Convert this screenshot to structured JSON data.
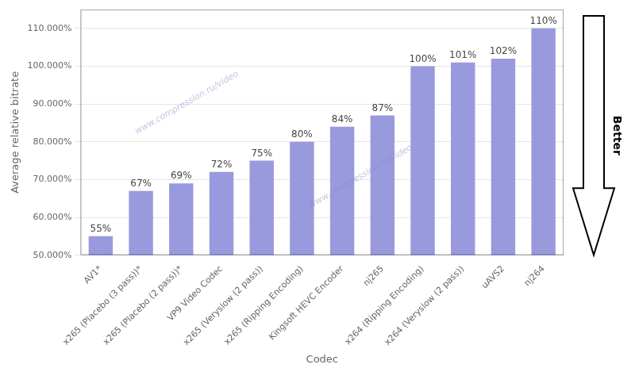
{
  "chart_data": {
    "type": "bar",
    "categories": [
      "AV1*",
      "x265 (Placebo (3 pass))*",
      "x265 (Placebo (2 pass))*",
      "VP9 Video Codec",
      "x265 (Veryslow (2 pass))",
      "x265 (Ripping Encoding)",
      "Kingsoft HEVC Encoder",
      "nj265",
      "x264 (Ripping Encoding)",
      "x264 (Veryslow (2 pass))",
      "uAVS2",
      "nj264"
    ],
    "values": [
      55,
      67,
      69,
      72,
      75,
      80,
      84,
      87,
      100,
      101,
      102,
      110
    ],
    "value_labels": [
      "55%",
      "67%",
      "69%",
      "72%",
      "75%",
      "80%",
      "84%",
      "87%",
      "100%",
      "101%",
      "102%",
      "110%"
    ],
    "data_labels": true,
    "color": "#9999dd",
    "xlabel": "Codec",
    "ylabel": "Average relative bitrate",
    "ylim": [
      50,
      115
    ],
    "yticks": [
      {
        "value": 50,
        "label": "50.000%"
      },
      {
        "value": 60,
        "label": "60.000%"
      },
      {
        "value": 70,
        "label": "70.000%"
      },
      {
        "value": 80,
        "label": "80.000%"
      },
      {
        "value": 90,
        "label": "90.000%"
      },
      {
        "value": 100,
        "label": "100.000%"
      },
      {
        "value": 110,
        "label": "110.000%"
      }
    ],
    "grid": true,
    "annotations": [
      "www.compression.ru/video",
      "www.compression.ru/video",
      "Better"
    ]
  }
}
